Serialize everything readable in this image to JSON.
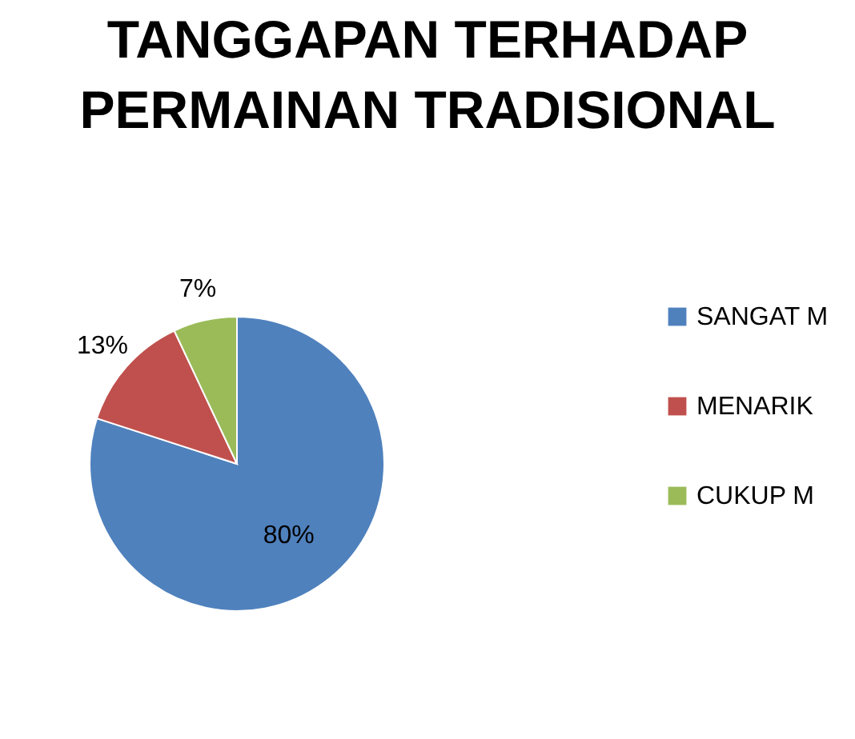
{
  "chart_data": {
    "type": "pie",
    "title": "TANGGAPAN TERHADAP PERMAINAN TRADISIONAL",
    "categories": [
      "SANGAT M",
      "MENARIK",
      "CUKUP M"
    ],
    "values": [
      80,
      13,
      7
    ],
    "colors": [
      "#4f81bd",
      "#c0504d",
      "#9bbb59"
    ],
    "value_labels": [
      "80%",
      "13%",
      "7%"
    ],
    "legend": "right"
  }
}
